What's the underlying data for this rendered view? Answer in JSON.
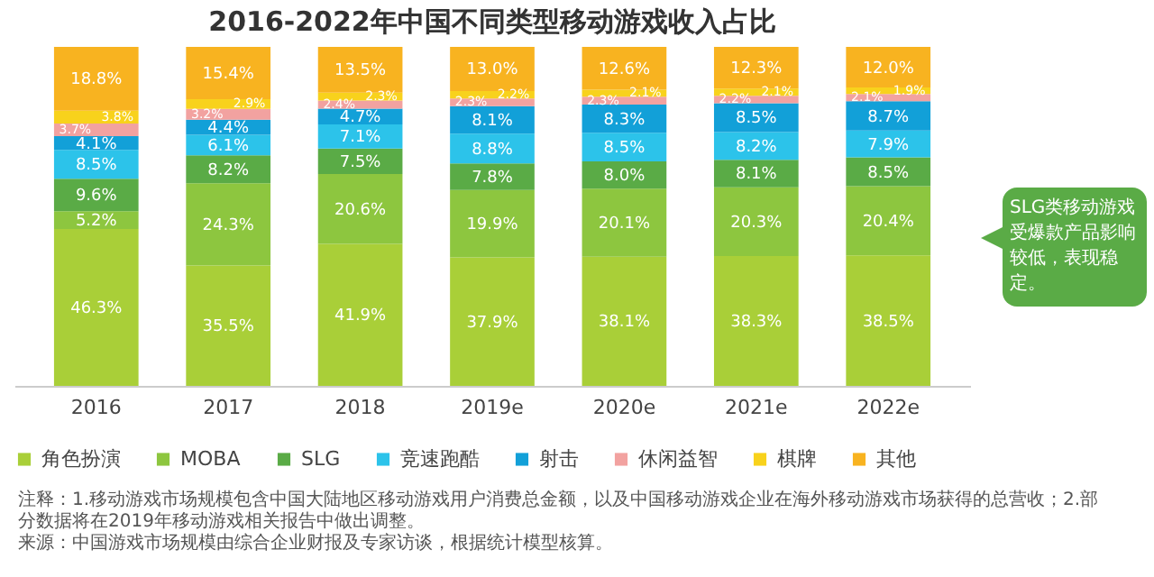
{
  "chart_data": {
    "type": "bar",
    "stacked": true,
    "title": "2016-2022年中国不同类型移动游戏收入占比",
    "categories": [
      "2016",
      "2017",
      "2018",
      "2019e",
      "2020e",
      "2021e",
      "2022e"
    ],
    "series": [
      {
        "name": "角色扮演",
        "color": "#a9cf38",
        "values": [
          46.3,
          35.5,
          41.9,
          37.9,
          38.1,
          38.3,
          38.5
        ],
        "value_labels": [
          "46.3%",
          "35.5%",
          "41.9%",
          "37.9%",
          "38.1%",
          "38.3%",
          "38.5%"
        ]
      },
      {
        "name": "MOBA",
        "color": "#8dc63f",
        "values": [
          5.2,
          24.3,
          20.6,
          19.9,
          20.1,
          20.3,
          20.4
        ],
        "value_labels": [
          "5.2%",
          "24.3%",
          "20.6%",
          "19.9%",
          "20.1%",
          "20.3%",
          "20.4%"
        ]
      },
      {
        "name": "SLG",
        "color": "#5aab46",
        "values": [
          9.6,
          8.2,
          7.5,
          7.8,
          8.0,
          8.1,
          8.5
        ],
        "value_labels": [
          "9.6%",
          "8.2%",
          "7.5%",
          "7.8%",
          "8.0%",
          "8.1%",
          "8.5%"
        ]
      },
      {
        "name": "竞速跑酷",
        "color": "#2cc3ea",
        "values": [
          8.5,
          6.1,
          7.1,
          8.8,
          8.5,
          8.2,
          7.9
        ],
        "value_labels": [
          "8.5%",
          "6.1%",
          "7.1%",
          "8.8%",
          "8.5%",
          "8.2%",
          "7.9%"
        ]
      },
      {
        "name": "射击",
        "color": "#12a0d8",
        "values": [
          4.1,
          4.4,
          4.7,
          8.1,
          8.3,
          8.5,
          8.7
        ],
        "value_labels": [
          "4.1%",
          "4.4%",
          "4.7%",
          "8.1%",
          "8.3%",
          "8.5%",
          "8.7%"
        ]
      },
      {
        "name": "休闲益智",
        "color": "#f2a2a0",
        "values": [
          3.7,
          3.2,
          2.4,
          2.3,
          2.3,
          2.2,
          2.1
        ],
        "value_labels": [
          "3.7%",
          "3.2%",
          "2.4%",
          "2.3%",
          "2.3%",
          "2.2%",
          "2.1%"
        ]
      },
      {
        "name": "棋牌",
        "color": "#f8d21c",
        "values": [
          3.8,
          2.9,
          2.3,
          2.2,
          2.1,
          2.1,
          1.9
        ],
        "value_labels": [
          "3.8%",
          "2.9%",
          "2.3%",
          "2.2%",
          "2.1%",
          "2.1%",
          "1.9%"
        ]
      },
      {
        "name": "其他",
        "color": "#f8b320",
        "values": [
          18.8,
          15.4,
          13.5,
          13.0,
          12.6,
          12.3,
          12.0
        ],
        "value_labels": [
          "18.8%",
          "15.4%",
          "13.5%",
          "13.0%",
          "12.6%",
          "12.3%",
          "12.0%"
        ]
      }
    ],
    "ylim": [
      0,
      100
    ],
    "tick_labels": "x",
    "legend": "bottom",
    "annotations": [
      "SLG类移动游戏受爆款产品影响较低，表现稳定。",
      "注释：1.移动游戏市场规模包含中国大陆地区移动游戏用户消费总金额，以及中国移动游戏企业在海外移动游戏市场获得的总营收；2.部分数据将在2019年移动游戏相关报告中做出调整。",
      "来源：中国游戏市场规模由综合企业财报及专家访谈，根据统计模型核算。"
    ]
  }
}
